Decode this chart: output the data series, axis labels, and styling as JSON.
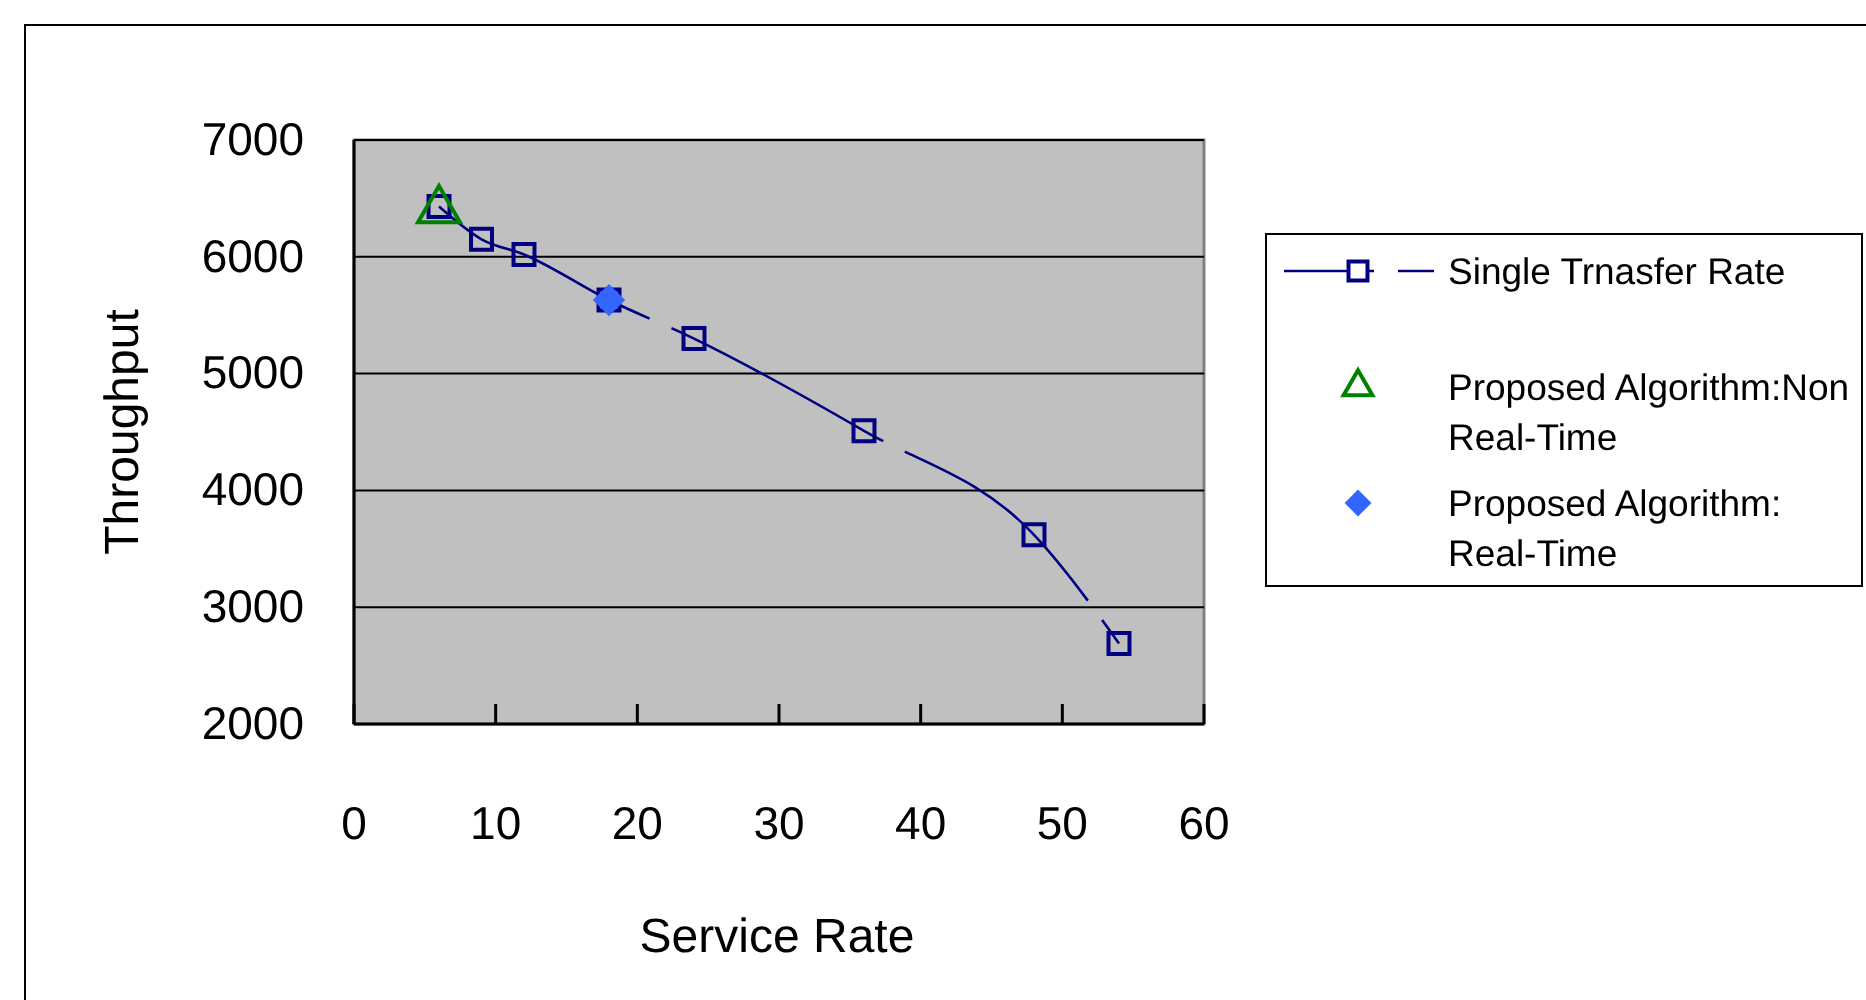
{
  "chart_data": {
    "type": "line",
    "xlabel": "Service Rate",
    "ylabel": "Throughput",
    "xlim": [
      0,
      60
    ],
    "ylim": [
      2000,
      7000
    ],
    "xticks": [
      0,
      10,
      20,
      30,
      40,
      50,
      60
    ],
    "yticks": [
      2000,
      3000,
      4000,
      5000,
      6000,
      7000
    ],
    "grid": "y",
    "legend": "right",
    "series": [
      {
        "name": "Single Trnasfer Rate",
        "color": "#000080",
        "marker": "square",
        "line_style": "dashed",
        "x": [
          6,
          9,
          12,
          18,
          24,
          36,
          48,
          54
        ],
        "values": [
          6430,
          6150,
          6020,
          5630,
          5300,
          4510,
          3620,
          2690
        ]
      },
      {
        "name": "Proposed Algorithm:Non Real-Time",
        "type": "scatter",
        "color": "#008000",
        "marker": "triangle",
        "x": [
          6
        ],
        "values": [
          6400
        ]
      },
      {
        "name": "Proposed Algorithm: Real-Time",
        "type": "scatter",
        "color": "#3366ff",
        "marker": "diamond",
        "x": [
          18
        ],
        "values": [
          5630
        ]
      }
    ]
  }
}
